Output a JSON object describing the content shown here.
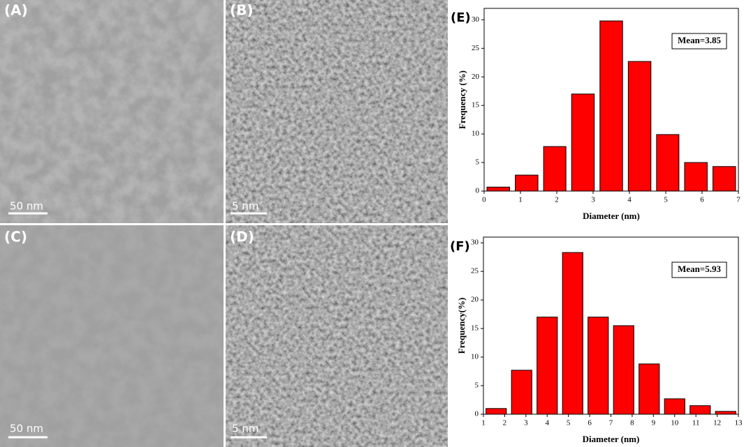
{
  "panels": [
    {
      "label": "(A)",
      "scale_bar": "50 nm"
    },
    {
      "label": "(B)",
      "scale_bar": "5 nm"
    },
    {
      "label": "(C)",
      "scale_bar": "50 nm"
    },
    {
      "label": "(D)",
      "scale_bar": "5 nm"
    }
  ],
  "chart_data": [
    {
      "type": "histogram",
      "panel_label": "(E)",
      "annotation": "Mean=3.85",
      "x_label": "Diameter (nm)",
      "y_label": "Frequency (%)",
      "bins": [
        0,
        0.78,
        1.56,
        2.33,
        3.11,
        3.89,
        4.67,
        5.44,
        6.22,
        7
      ],
      "values": [
        0.7,
        2.8,
        7.8,
        17,
        29.8,
        22.7,
        9.9,
        5,
        4.3
      ],
      "color": "#ff0000",
      "xlim": [
        0,
        7
      ],
      "xticks": [
        0,
        1,
        2,
        3,
        4,
        5,
        6,
        7
      ],
      "ylim": [
        0,
        32
      ],
      "yticks": [
        0,
        5,
        10,
        15,
        20,
        25,
        30
      ]
    },
    {
      "type": "histogram",
      "panel_label": "(F)",
      "annotation": "Mean=5.93",
      "x_label": "Diameter (nm)",
      "y_label": "Frequency(%)",
      "bins": [
        1,
        2.2,
        3.4,
        4.6,
        5.8,
        7,
        8.2,
        9.4,
        10.6,
        11.8,
        13
      ],
      "values": [
        1,
        7.7,
        17,
        28.3,
        17,
        15.5,
        8.8,
        2.7,
        1.5,
        0.5
      ],
      "color": "#ff0000",
      "xlim": [
        1,
        13
      ],
      "xticks": [
        1,
        2,
        3,
        4,
        5,
        6,
        7,
        8,
        9,
        10,
        11,
        12,
        13
      ],
      "ylim": [
        0,
        31
      ],
      "yticks": [
        0,
        5,
        10,
        15,
        20,
        25,
        30
      ]
    }
  ]
}
